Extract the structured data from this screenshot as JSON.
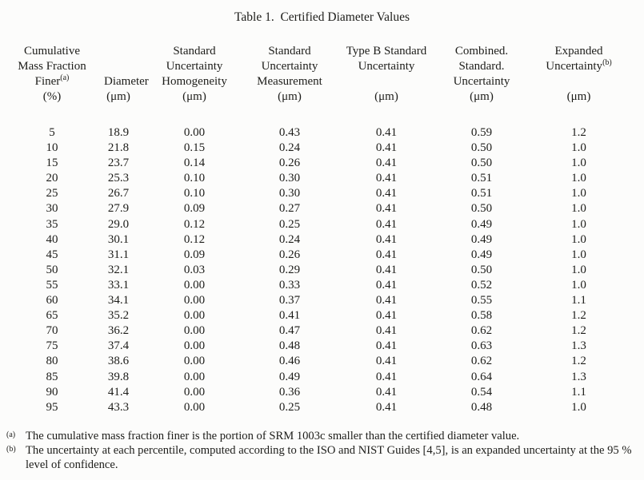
{
  "page": {
    "background": "#fcfcfb",
    "text_color": "#1d1d1a"
  },
  "table": {
    "title": "Table 1.  Certified Diameter Values",
    "header_columns": [
      {
        "lines": [
          {
            "text": "Cumulative"
          },
          {
            "text": "Mass Fraction"
          },
          {
            "text": "Finer",
            "sup": "(a)"
          },
          {
            "text": "(%)"
          }
        ]
      },
      {
        "lines": [
          {
            "text": ""
          },
          {
            "text": ""
          },
          {
            "text": "Diameter"
          },
          {
            "text": "(μm)"
          }
        ]
      },
      {
        "lines": [
          {
            "text": "Standard"
          },
          {
            "text": "Uncertainty"
          },
          {
            "text": "Homogeneity"
          },
          {
            "text": "(μm)"
          }
        ]
      },
      {
        "lines": [
          {
            "text": "Standard"
          },
          {
            "text": "Uncertainty"
          },
          {
            "text": "Measurement"
          },
          {
            "text": "(μm)"
          }
        ]
      },
      {
        "lines": [
          {
            "text": "Type B Standard"
          },
          {
            "text": "Uncertainty"
          },
          {
            "text": ""
          },
          {
            "text": "(μm)"
          }
        ]
      },
      {
        "lines": [
          {
            "text": "Combined."
          },
          {
            "text": "Standard."
          },
          {
            "text": "Uncertainty"
          },
          {
            "text": "(μm)"
          }
        ]
      },
      {
        "lines": [
          {
            "text": "Expanded"
          },
          {
            "text": "Uncertainty",
            "sup": "(b)"
          },
          {
            "text": ""
          },
          {
            "text": "(μm)"
          }
        ]
      }
    ],
    "rows": [
      [
        "5",
        "18.9",
        "0.00",
        "0.43",
        "0.41",
        "0.59",
        "1.2"
      ],
      [
        "10",
        "21.8",
        "0.15",
        "0.24",
        "0.41",
        "0.50",
        "1.0"
      ],
      [
        "15",
        "23.7",
        "0.14",
        "0.26",
        "0.41",
        "0.50",
        "1.0"
      ],
      [
        "20",
        "25.3",
        "0.10",
        "0.30",
        "0.41",
        "0.51",
        "1.0"
      ],
      [
        "25",
        "26.7",
        "0.10",
        "0.30",
        "0.41",
        "0.51",
        "1.0"
      ],
      [
        "30",
        "27.9",
        "0.09",
        "0.27",
        "0.41",
        "0.50",
        "1.0"
      ],
      [
        "35",
        "29.0",
        "0.12",
        "0.25",
        "0.41",
        "0.49",
        "1.0"
      ],
      [
        "40",
        "30.1",
        "0.12",
        "0.24",
        "0.41",
        "0.49",
        "1.0"
      ],
      [
        "45",
        "31.1",
        "0.09",
        "0.26",
        "0.41",
        "0.49",
        "1.0"
      ],
      [
        "50",
        "32.1",
        "0.03",
        "0.29",
        "0.41",
        "0.50",
        "1.0"
      ],
      [
        "55",
        "33.1",
        "0.00",
        "0.33",
        "0.41",
        "0.52",
        "1.0"
      ],
      [
        "60",
        "34.1",
        "0.00",
        "0.37",
        "0.41",
        "0.55",
        "1.1"
      ],
      [
        "65",
        "35.2",
        "0.00",
        "0.41",
        "0.41",
        "0.58",
        "1.2"
      ],
      [
        "70",
        "36.2",
        "0.00",
        "0.47",
        "0.41",
        "0.62",
        "1.2"
      ],
      [
        "75",
        "37.4",
        "0.00",
        "0.48",
        "0.41",
        "0.63",
        "1.3"
      ],
      [
        "80",
        "38.6",
        "0.00",
        "0.46",
        "0.41",
        "0.62",
        "1.2"
      ],
      [
        "85",
        "39.8",
        "0.00",
        "0.49",
        "0.41",
        "0.64",
        "1.3"
      ],
      [
        "90",
        "41.4",
        "0.00",
        "0.36",
        "0.41",
        "0.54",
        "1.1"
      ],
      [
        "95",
        "43.3",
        "0.00",
        "0.25",
        "0.41",
        "0.48",
        "1.0"
      ]
    ]
  },
  "footnotes": [
    {
      "marker": "(a)",
      "lines": [
        "The cumulative mass fraction finer is the portion of SRM 1003c smaller than the certified diameter value."
      ]
    },
    {
      "marker": "(b)",
      "lines": [
        "The uncertainty at each percentile, computed according to the ISO and NIST Guides [4,5], is an expanded uncertainty at the 95 %",
        "level of confidence."
      ]
    }
  ]
}
